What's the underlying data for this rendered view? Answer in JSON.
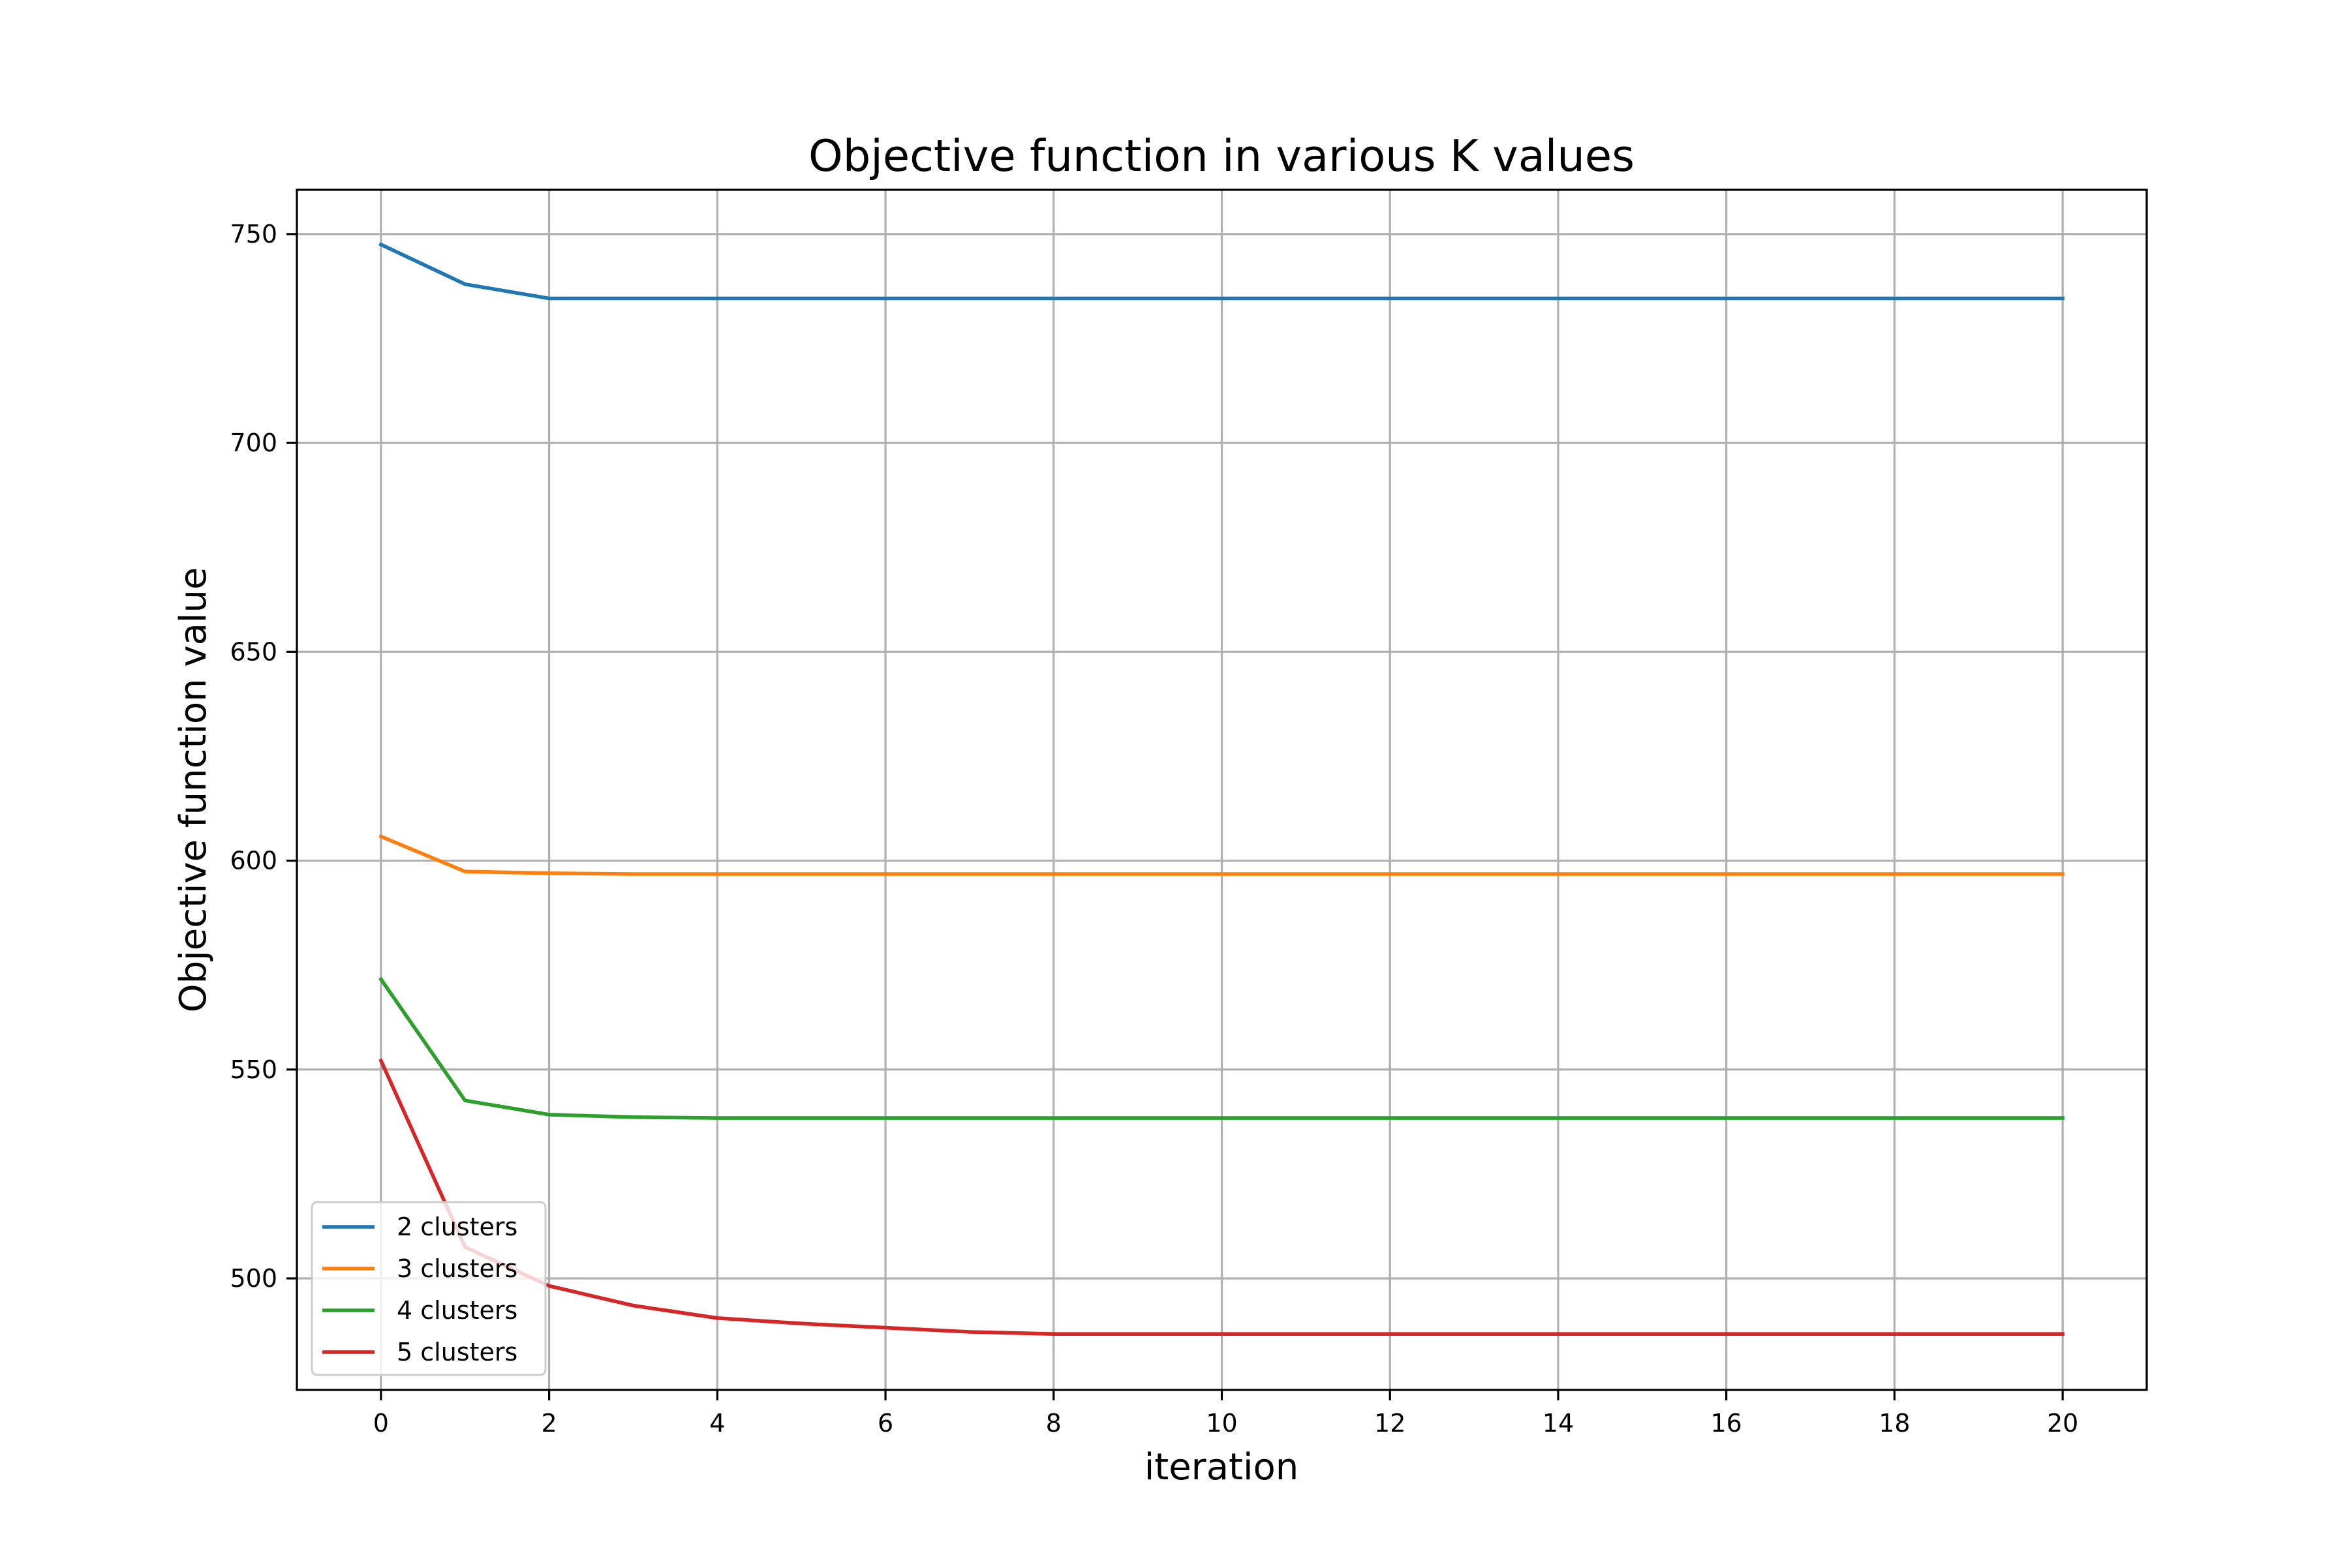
{
  "chart_data": {
    "type": "line",
    "title": "Objective function in various K values",
    "xlabel": "iteration",
    "ylabel": "Objective function value",
    "xlim": [
      -1,
      21
    ],
    "ylim": [
      473.3,
      760.6
    ],
    "xticks": [
      0,
      2,
      4,
      6,
      8,
      10,
      12,
      14,
      16,
      18,
      20
    ],
    "yticks": [
      500,
      550,
      600,
      650,
      700,
      750
    ],
    "grid": true,
    "legend": {
      "position": "lower-left"
    },
    "x": [
      0,
      1,
      2,
      3,
      4,
      5,
      6,
      7,
      8,
      9,
      10,
      11,
      12,
      13,
      14,
      15,
      16,
      17,
      18,
      19,
      20
    ],
    "series": [
      {
        "name": "2 clusters",
        "color": "#1f77b4",
        "values": [
          747.5,
          738.0,
          734.6,
          734.6,
          734.6,
          734.6,
          734.6,
          734.6,
          734.6,
          734.6,
          734.6,
          734.6,
          734.6,
          734.6,
          734.6,
          734.6,
          734.6,
          734.6,
          734.6,
          734.6,
          734.6
        ]
      },
      {
        "name": "3 clusters",
        "color": "#ff7f0e",
        "values": [
          605.8,
          597.4,
          597.0,
          596.8,
          596.8,
          596.8,
          596.8,
          596.8,
          596.8,
          596.8,
          596.8,
          596.8,
          596.8,
          596.8,
          596.8,
          596.8,
          596.8,
          596.8,
          596.8,
          596.8,
          596.8
        ]
      },
      {
        "name": "4 clusters",
        "color": "#2ca02c",
        "values": [
          571.6,
          542.6,
          539.2,
          538.6,
          538.4,
          538.4,
          538.4,
          538.4,
          538.4,
          538.4,
          538.4,
          538.4,
          538.4,
          538.4,
          538.4,
          538.4,
          538.4,
          538.4,
          538.4,
          538.4,
          538.4
        ]
      },
      {
        "name": "5 clusters",
        "color": "#d62728",
        "values": [
          552.1,
          507.5,
          498.2,
          493.5,
          490.5,
          489.2,
          488.2,
          487.2,
          486.7,
          486.7,
          486.7,
          486.7,
          486.7,
          486.7,
          486.7,
          486.7,
          486.7,
          486.7,
          486.7,
          486.7,
          486.7
        ]
      }
    ]
  }
}
